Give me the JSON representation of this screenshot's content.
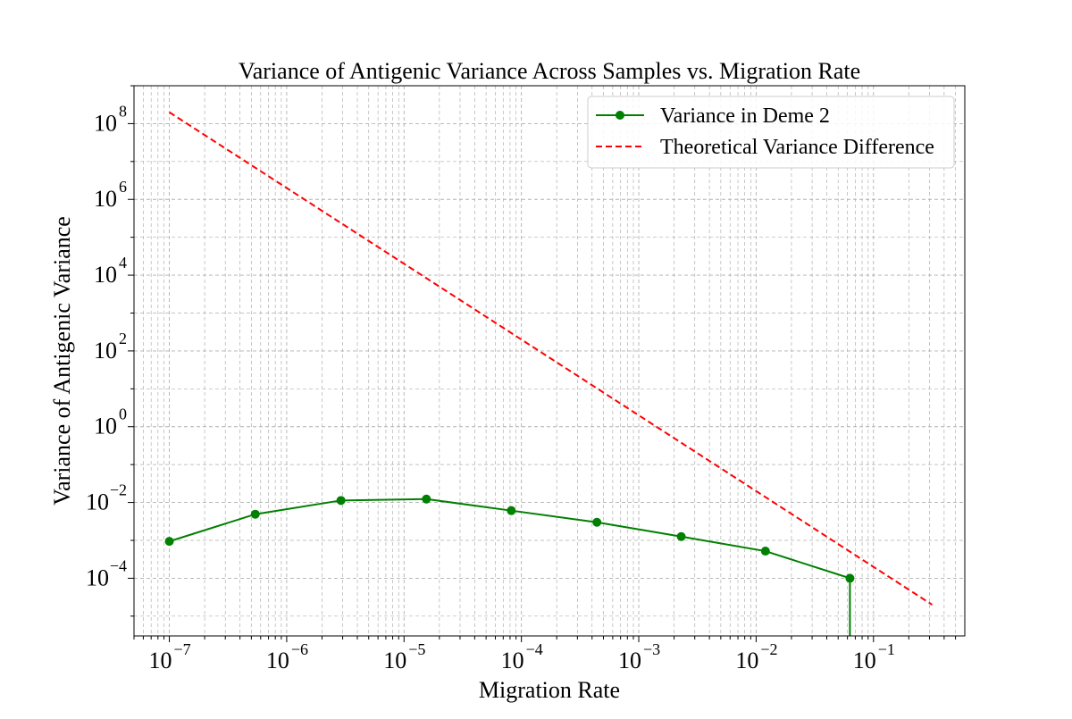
{
  "chart_data": {
    "type": "line",
    "title": "Variance of Antigenic Variance Across Samples vs. Migration Rate",
    "xlabel": "Migration Rate",
    "ylabel": "Variance of Antigenic Variance",
    "xscale": "log",
    "yscale": "log",
    "xlim": [
      5e-08,
      0.6
    ],
    "ylim": [
      3e-06,
      1000000000.0
    ],
    "grid": "both (major and minor), dashed",
    "legend_position": "top-right",
    "x_ticks": [
      {
        "value": 1e-07,
        "base": "10",
        "exp": "−7"
      },
      {
        "value": 1e-06,
        "base": "10",
        "exp": "−6"
      },
      {
        "value": 1e-05,
        "base": "10",
        "exp": "−5"
      },
      {
        "value": 0.0001,
        "base": "10",
        "exp": "−4"
      },
      {
        "value": 0.001,
        "base": "10",
        "exp": "−3"
      },
      {
        "value": 0.01,
        "base": "10",
        "exp": "−2"
      },
      {
        "value": 0.1,
        "base": "10",
        "exp": "−1"
      }
    ],
    "y_ticks": [
      {
        "value": 0.0001,
        "base": "10",
        "exp": "−4"
      },
      {
        "value": 0.01,
        "base": "10",
        "exp": "−2"
      },
      {
        "value": 1,
        "base": "10",
        "exp": "0"
      },
      {
        "value": 100,
        "base": "10",
        "exp": "2"
      },
      {
        "value": 10000,
        "base": "10",
        "exp": "4"
      },
      {
        "value": 1000000,
        "base": "10",
        "exp": "6"
      },
      {
        "value": 100000000,
        "base": "10",
        "exp": "8"
      }
    ],
    "series": [
      {
        "name": "Variance in Deme 2",
        "style": "solid line with circle markers",
        "color": "#008000",
        "x": [
          1e-07,
          5.4e-07,
          2.9e-06,
          1.55e-05,
          8.2e-05,
          0.00044,
          0.0023,
          0.012,
          0.063,
          0.063
        ],
        "y": [
          0.00094,
          0.0049,
          0.0113,
          0.0123,
          0.0061,
          0.003,
          0.00126,
          0.00052,
          0.0001,
          0.0
        ],
        "markers": [
          true,
          true,
          true,
          true,
          true,
          true,
          true,
          true,
          true,
          false
        ]
      },
      {
        "name": "Theoretical Variance Difference",
        "style": "dashed line",
        "color": "#ff0000",
        "x": [
          1e-07,
          0.316
        ],
        "y": [
          200000000,
          2e-05
        ]
      }
    ]
  }
}
